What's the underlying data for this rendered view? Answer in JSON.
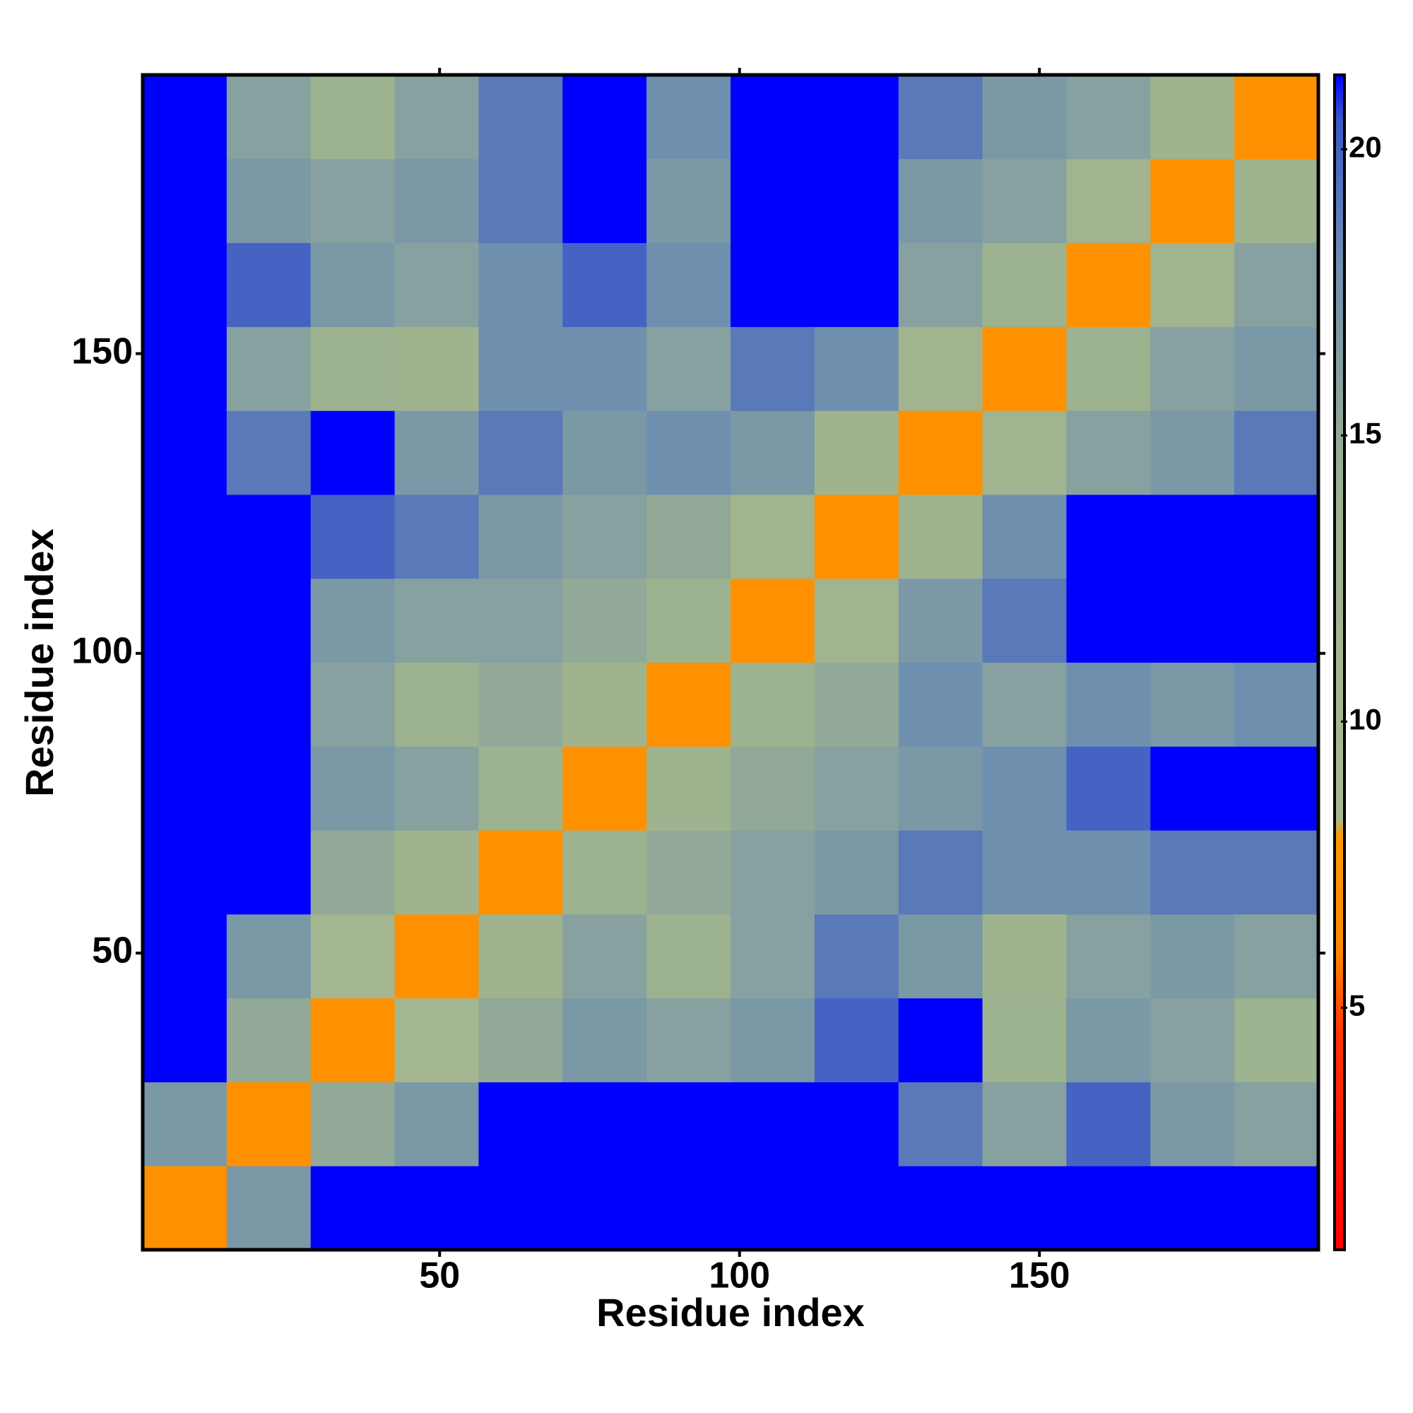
{
  "chart_data": {
    "type": "heatmap",
    "xlabel": "Residue index",
    "ylabel": "Residue index",
    "x_bins": [
      0.5,
      14.5,
      28.5,
      42.5,
      56.5,
      70.5,
      84.5,
      98.5,
      112.5,
      126.5,
      140.5,
      154.5,
      168.5,
      182.5,
      196.5
    ],
    "y_bins": [
      0.5,
      14.5,
      28.5,
      42.5,
      56.5,
      70.5,
      84.5,
      98.5,
      112.5,
      126.5,
      140.5,
      154.5,
      168.5,
      182.5,
      196.5
    ],
    "z": [
      [
        7,
        17,
        21.3,
        21.3,
        21.3,
        21.3,
        21.3,
        21.3,
        21.3,
        21.3,
        21.3,
        21.3,
        21.3,
        21.3
      ],
      [
        17,
        7,
        15,
        17,
        21.3,
        21.3,
        21.3,
        21.3,
        21.3,
        19,
        16,
        20,
        17,
        16
      ],
      [
        21.3,
        15,
        7,
        11,
        15,
        17,
        16,
        17,
        20,
        21.3,
        14,
        17,
        16,
        14
      ],
      [
        21.3,
        17,
        11,
        7,
        13,
        16,
        14,
        16,
        19,
        17,
        13,
        16,
        17,
        16
      ],
      [
        21.3,
        21.3,
        15,
        13,
        7,
        14,
        15,
        16,
        17,
        19,
        18,
        18,
        19,
        19
      ],
      [
        21.3,
        21.3,
        17,
        16,
        14,
        7,
        13,
        15,
        16,
        17,
        18,
        20,
        21.3,
        21.3
      ],
      [
        21.3,
        21.3,
        16,
        14,
        15,
        13,
        7,
        14,
        15,
        18,
        16,
        18,
        17,
        18
      ],
      [
        21.3,
        21.3,
        17,
        16,
        16,
        15,
        14,
        7,
        12,
        17,
        19,
        21.3,
        21.3,
        21.3
      ],
      [
        21.3,
        21.3,
        20,
        19,
        17,
        16,
        15,
        12,
        7,
        13,
        18,
        21.3,
        21.3,
        21.3
      ],
      [
        21.3,
        19,
        21.3,
        17,
        19,
        17,
        18,
        17,
        13,
        7,
        12,
        16,
        17,
        19
      ],
      [
        21.3,
        16,
        14,
        13,
        18,
        18,
        16,
        19,
        18,
        12,
        7,
        14,
        16,
        17
      ],
      [
        21.3,
        20,
        17,
        16,
        18,
        20,
        18,
        21.3,
        21.3,
        16,
        14,
        7,
        12,
        16
      ],
      [
        21.3,
        17,
        16,
        17,
        19,
        21.3,
        17,
        21.3,
        21.3,
        17,
        16,
        12,
        7,
        13
      ],
      [
        21.3,
        16,
        14,
        16,
        19,
        21.3,
        18,
        21.3,
        21.3,
        19,
        17,
        16,
        13,
        7
      ]
    ],
    "xlim": [
      0.5,
      196.5
    ],
    "ylim": [
      0.5,
      196.5
    ],
    "xticks": [
      50,
      100,
      150
    ],
    "yticks": [
      50,
      100,
      150
    ],
    "colorbar": {
      "lim": [
        0.77,
        21.3
      ],
      "ticks": [
        5,
        10,
        15,
        20
      ]
    },
    "colorscale": [
      [
        0.77,
        "#ff0000"
      ],
      [
        4.5,
        "#ff3300"
      ],
      [
        6,
        "#ff8800"
      ],
      [
        8,
        "#ff9900"
      ],
      [
        8.3,
        "#a9b98f"
      ],
      [
        14,
        "#9db28f"
      ],
      [
        18,
        "#6f8fae"
      ],
      [
        20.5,
        "#3a58c8"
      ],
      [
        21.3,
        "#0000ff"
      ]
    ]
  }
}
